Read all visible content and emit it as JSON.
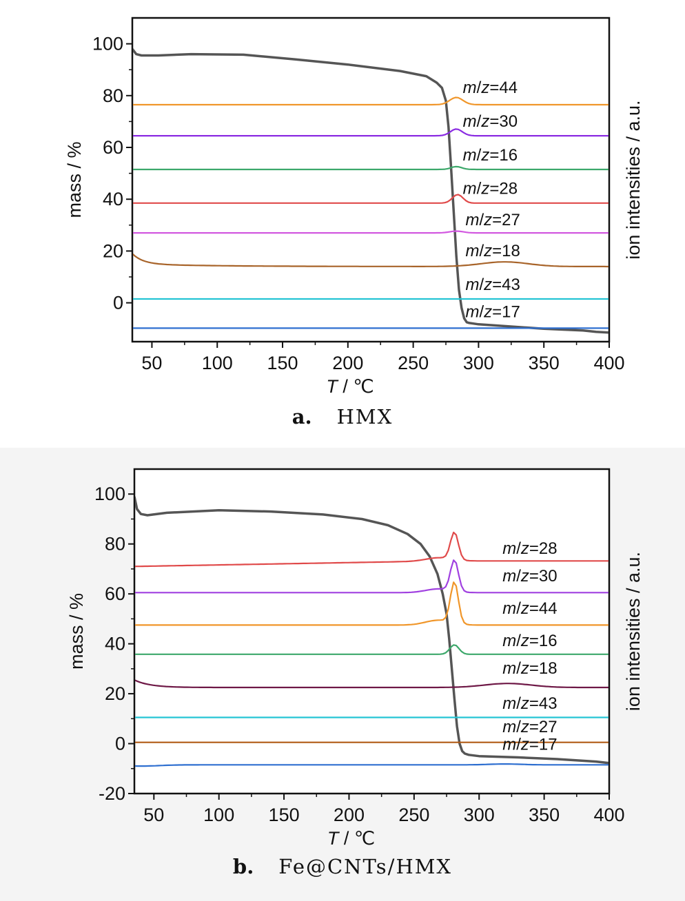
{
  "chart_data": [
    {
      "type": "line",
      "caption_letter": "a.",
      "caption_text": "HMX",
      "xlabel": "T / ℃",
      "ylabel": "mass / %",
      "y2label": "ion intensities / a.u.",
      "xlim": [
        35,
        400
      ],
      "ylim": [
        -15,
        110
      ],
      "xticks": [
        50,
        100,
        150,
        200,
        250,
        300,
        350,
        400
      ],
      "yticks": [
        0,
        20,
        40,
        60,
        80,
        100
      ],
      "grid": false,
      "series": [
        {
          "name": "mass",
          "color": "#555555",
          "kind": "tg",
          "x": [
            35,
            38,
            42,
            55,
            80,
            120,
            160,
            200,
            240,
            260,
            268,
            272,
            275,
            277,
            279,
            281,
            283,
            285,
            287,
            289,
            291,
            293,
            296,
            300,
            320,
            350,
            380,
            390,
            400
          ],
          "y": [
            98,
            96,
            95.5,
            95.5,
            96,
            95.8,
            94,
            92,
            89.5,
            87.5,
            85,
            83,
            78,
            68,
            52,
            35,
            18,
            5,
            -2,
            -6,
            -7.5,
            -7.8,
            -8,
            -8.3,
            -9,
            -10,
            -10.7,
            -11.2,
            -11.5
          ]
        },
        {
          "name": "m/z=44",
          "color": "#F0962A",
          "kind": "ms",
          "baseline": 76.5,
          "peaks": [
            [
              283,
              2.8,
              5
            ]
          ],
          "label_x": 288,
          "label_y": 81
        },
        {
          "name": "m/z=30",
          "color": "#8A2BE2",
          "kind": "ms",
          "baseline": 64.5,
          "peaks": [
            [
              283,
              2.6,
              4.5
            ]
          ],
          "label_x": 288,
          "label_y": 68
        },
        {
          "name": "m/z=16",
          "color": "#3CA86A",
          "kind": "ms",
          "baseline": 51.5,
          "peaks": [
            [
              283,
              1.1,
              4
            ]
          ],
          "label_x": 288,
          "label_y": 55
        },
        {
          "name": "m/z=28",
          "color": "#E04A4A",
          "kind": "ms",
          "baseline": 38.5,
          "peaks": [
            [
              284,
              3.3,
              4
            ]
          ],
          "label_x": 288,
          "label_y": 42
        },
        {
          "name": "m/z=27",
          "color": "#D258E0",
          "kind": "ms",
          "baseline": 27,
          "peaks": [
            [
              283,
              0.7,
              5
            ]
          ],
          "label_x": 290,
          "label_y": 30
        },
        {
          "name": "m/z=18",
          "color": "#A8642A",
          "kind": "ms18",
          "baseline": 14,
          "peaks": [
            [
              320,
              1.8,
              18
            ]
          ],
          "label_x": 290,
          "label_y": 18
        },
        {
          "name": "m/z=43",
          "color": "#24C4D4",
          "kind": "ms",
          "baseline": 1.5,
          "peaks": [],
          "label_x": 290,
          "label_y": 5
        },
        {
          "name": "m/z=17",
          "color": "#2E6FD0",
          "kind": "ms",
          "baseline": -9.8,
          "peaks": [],
          "label_x": 290,
          "label_y": -5.5
        }
      ]
    },
    {
      "type": "line",
      "caption_letter": "b.",
      "caption_text": "Fe@CNTs/HMX",
      "xlabel": "T / ℃",
      "ylabel": "mass / %",
      "y2label": "ion intensities / a.u.",
      "xlim": [
        35,
        400
      ],
      "ylim": [
        -20,
        110
      ],
      "xticks": [
        50,
        100,
        150,
        200,
        250,
        300,
        350,
        400
      ],
      "yticks": [
        -20,
        0,
        20,
        40,
        60,
        80,
        100
      ],
      "grid": false,
      "series": [
        {
          "name": "mass",
          "color": "#555555",
          "kind": "tg",
          "x": [
            35,
            37,
            40,
            45,
            60,
            100,
            140,
            180,
            210,
            230,
            245,
            255,
            262,
            268,
            272,
            275,
            277,
            279,
            281,
            283,
            285,
            287,
            289,
            292,
            300,
            330,
            360,
            390,
            400
          ],
          "y": [
            99,
            94,
            92,
            91.5,
            92.5,
            93.5,
            93,
            91.8,
            90,
            87.5,
            84,
            80,
            75,
            68,
            60,
            52,
            42,
            30,
            18,
            7,
            0,
            -3,
            -4,
            -4.5,
            -5,
            -5.5,
            -6.2,
            -7.2,
            -7.8
          ]
        },
        {
          "name": "m/z=28",
          "color": "#E04A4A",
          "kind": "ms",
          "baseline": 71,
          "slope_to": 73.2,
          "peaks": [
            [
              281,
              11,
              3
            ]
          ],
          "label_x": 318,
          "label_y": 76
        },
        {
          "name": "m/z=30",
          "color": "#A040E0",
          "kind": "ms",
          "baseline": 60.5,
          "peaks": [
            [
              281,
              12.5,
              3
            ]
          ],
          "label_x": 318,
          "label_y": 65
        },
        {
          "name": "m/z=44",
          "color": "#F0962A",
          "kind": "ms",
          "baseline": 47.5,
          "peaks": [
            [
              281,
              16.5,
              3
            ]
          ],
          "label_x": 318,
          "label_y": 52
        },
        {
          "name": "m/z=16",
          "color": "#3CA86A",
          "kind": "ms",
          "baseline": 35.8,
          "peaks": [
            [
              281,
              3.8,
              3.5
            ]
          ],
          "label_x": 318,
          "label_y": 39
        },
        {
          "name": "m/z=18",
          "color": "#6E1846",
          "kind": "ms18",
          "baseline": 22.5,
          "start_y": 25.5,
          "peaks": [
            [
              322,
              1.6,
              18
            ]
          ],
          "label_x": 318,
          "label_y": 28
        },
        {
          "name": "m/z=43",
          "color": "#24C4D4",
          "kind": "ms",
          "baseline": 10.5,
          "peaks": [],
          "label_x": 318,
          "label_y": 14
        },
        {
          "name": "m/z=27",
          "color": "#B05A14",
          "kind": "ms",
          "baseline": 0.5,
          "peaks": [],
          "label_x": 318,
          "label_y": 4.5
        },
        {
          "name": "m/z=17",
          "color": "#2E6FD0",
          "kind": "ms17",
          "baseline": -8.5,
          "peaks": [],
          "label_x": 318,
          "label_y": -2.5
        }
      ]
    }
  ]
}
